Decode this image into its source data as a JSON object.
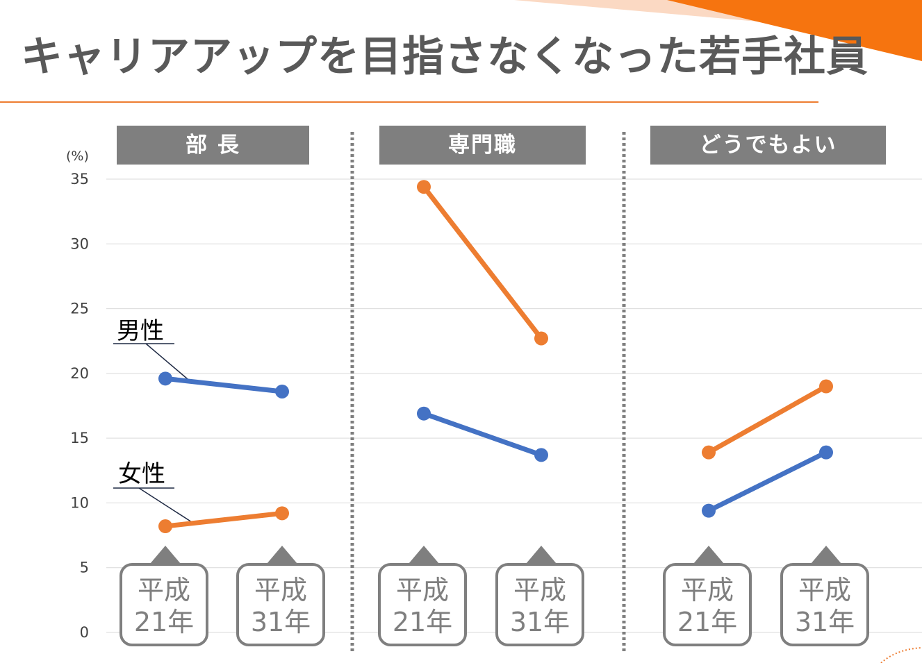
{
  "title": "キャリアアップを目指さなくなった若手社員",
  "colors": {
    "male": "#4472c4",
    "female": "#ed7d31",
    "header": "#7f7f7f",
    "grid": "#d9d9d9",
    "accent": "#ed7d31"
  },
  "chart_data": {
    "type": "line",
    "unit_label": "(%)",
    "ylim": [
      0,
      35
    ],
    "y_ticks": [
      "0",
      "5",
      "10",
      "15",
      "20",
      "25",
      "30",
      "35"
    ],
    "y_tick_values": [
      0,
      5,
      10,
      15,
      20,
      25,
      30,
      35
    ],
    "categories": [
      {
        "line1": "平成",
        "line2": "21年"
      },
      {
        "line1": "平成",
        "line2": "31年"
      }
    ],
    "panels": [
      {
        "title": "部 長",
        "series": [
          {
            "name": "男性",
            "values": [
              19.6,
              18.6
            ]
          },
          {
            "name": "女性",
            "values": [
              8.2,
              9.2
            ]
          }
        ]
      },
      {
        "title": "専門職",
        "series": [
          {
            "name": "男性",
            "values": [
              16.9,
              13.7
            ]
          },
          {
            "name": "女性",
            "values": [
              34.4,
              22.7
            ]
          }
        ]
      },
      {
        "title": "どうでもよい",
        "series": [
          {
            "name": "男性",
            "values": [
              9.4,
              13.9
            ]
          },
          {
            "name": "女性",
            "values": [
              13.9,
              19.0
            ]
          }
        ]
      }
    ],
    "series_labels": {
      "male": "男性",
      "female": "女性"
    },
    "grid": true
  }
}
